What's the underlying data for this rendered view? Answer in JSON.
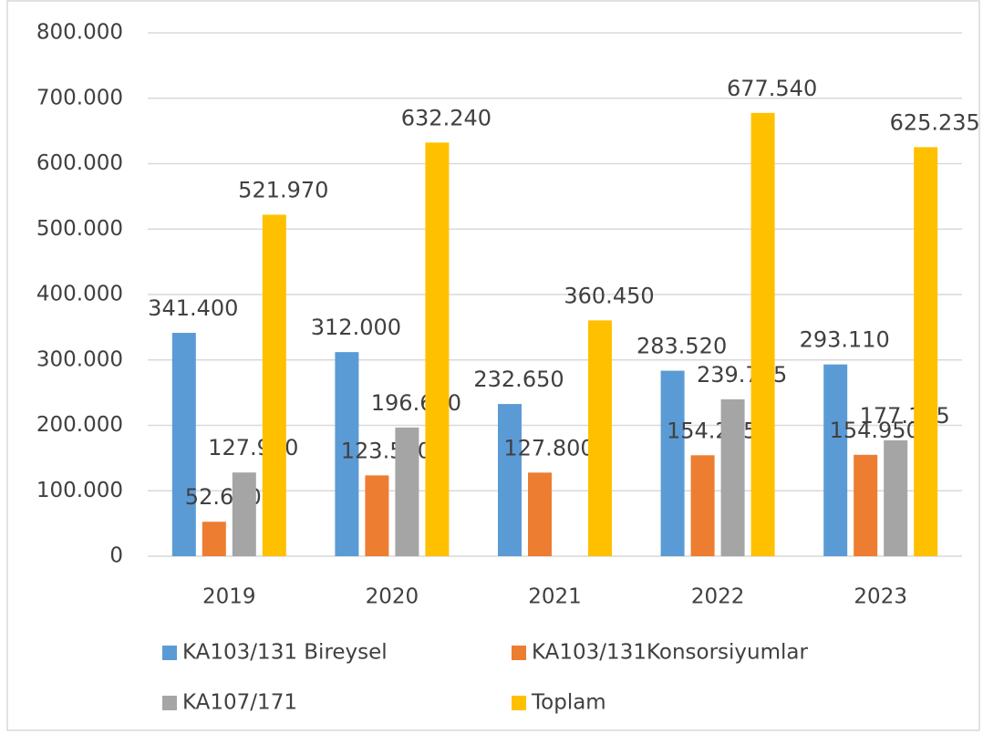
{
  "chart_data": {
    "type": "bar",
    "categories": [
      "2019",
      "2020",
      "2021",
      "2022",
      "2023"
    ],
    "series": [
      {
        "name": "KA103/131 Bireysel",
        "color": "#5b9bd5",
        "values": [
          341400,
          312000,
          232650,
          283520,
          293110
        ],
        "value_labels": [
          "341.400",
          "312.000",
          "232.650",
          "283.520",
          "293.110"
        ]
      },
      {
        "name": "KA103/131Konsorsiyumlar",
        "color": "#ed7d31",
        "values": [
          52650,
          123550,
          127800,
          154275,
          154950
        ],
        "value_labels": [
          "52.650",
          "123.550",
          "127.800",
          "154.275",
          "154.950"
        ]
      },
      {
        "name": "KA107/171",
        "color": "#a5a5a5",
        "values": [
          127920,
          196690,
          null,
          239745,
          177175
        ],
        "value_labels": [
          "127.920",
          "196.690",
          null,
          "239.745",
          "177.175"
        ]
      },
      {
        "name": "Toplam",
        "color": "#ffc000",
        "values": [
          521970,
          632240,
          360450,
          677540,
          625235
        ],
        "value_labels": [
          "521.970",
          "632.240",
          "360.450",
          "677.540",
          "625.235"
        ]
      }
    ],
    "ylim": [
      0,
      800000
    ],
    "yticks": [
      0,
      {
        "value": 100000,
        "label": "100.000"
      },
      {
        "value": 200000,
        "label": "200.000"
      },
      {
        "value": 300000,
        "label": "300.000"
      },
      {
        "value": 400000,
        "label": "400.000"
      },
      {
        "value": 500000,
        "label": "500.000"
      },
      {
        "value": 600000,
        "label": "600.000"
      },
      {
        "value": 700000,
        "label": "700.000"
      },
      {
        "value": 800000,
        "label": "800.000"
      }
    ],
    "grid": true,
    "legend": "bottom"
  }
}
